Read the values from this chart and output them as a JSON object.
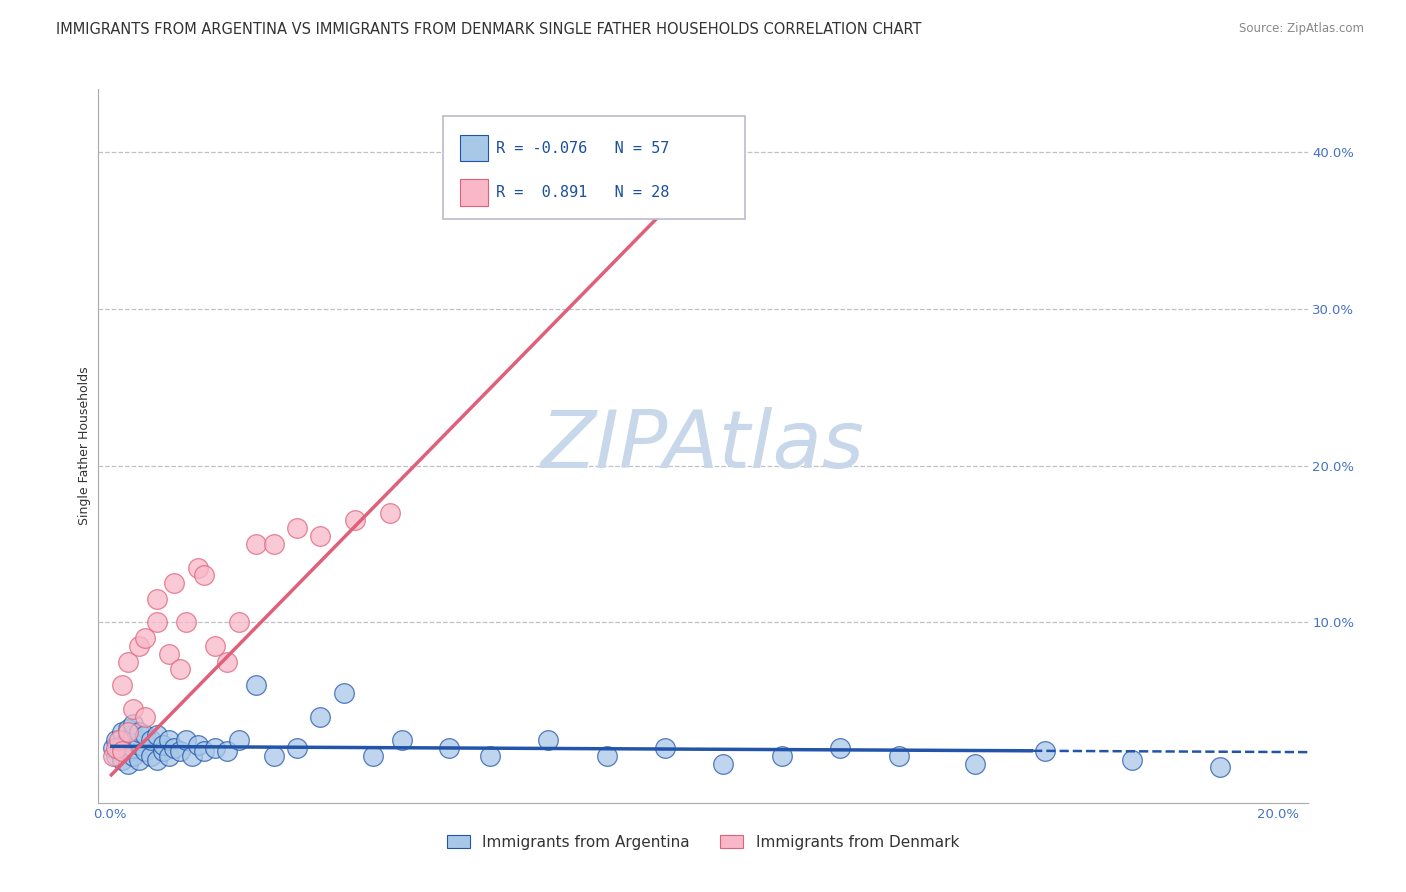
{
  "title": "IMMIGRANTS FROM ARGENTINA VS IMMIGRANTS FROM DENMARK SINGLE FATHER HOUSEHOLDS CORRELATION CHART",
  "source": "Source: ZipAtlas.com",
  "ylabel": "Single Father Households",
  "xlim": [
    -0.002,
    0.205
  ],
  "ylim": [
    -0.015,
    0.44
  ],
  "xticks": [
    0.0,
    0.2
  ],
  "yticks": [
    0.1,
    0.2,
    0.3,
    0.4
  ],
  "argentina_R": -0.076,
  "argentina_N": 57,
  "denmark_R": 0.891,
  "denmark_N": 28,
  "argentina_color": "#a8c8e8",
  "denmark_color": "#f8b8c8",
  "argentina_line_color": "#2255aa",
  "denmark_line_color": "#e0607a",
  "watermark": "ZIPAtlas",
  "watermark_color": "#c8d8ea",
  "argentina_x": [
    0.0005,
    0.001,
    0.001,
    0.0015,
    0.002,
    0.002,
    0.002,
    0.003,
    0.003,
    0.003,
    0.003,
    0.004,
    0.004,
    0.004,
    0.004,
    0.005,
    0.005,
    0.005,
    0.006,
    0.006,
    0.007,
    0.007,
    0.008,
    0.008,
    0.009,
    0.009,
    0.01,
    0.01,
    0.011,
    0.012,
    0.013,
    0.014,
    0.015,
    0.016,
    0.018,
    0.02,
    0.022,
    0.025,
    0.028,
    0.032,
    0.036,
    0.04,
    0.045,
    0.05,
    0.058,
    0.065,
    0.075,
    0.085,
    0.095,
    0.105,
    0.115,
    0.125,
    0.135,
    0.148,
    0.16,
    0.175,
    0.19
  ],
  "argentina_y": [
    0.02,
    0.015,
    0.025,
    0.018,
    0.012,
    0.022,
    0.03,
    0.01,
    0.018,
    0.025,
    0.032,
    0.015,
    0.02,
    0.028,
    0.035,
    0.012,
    0.022,
    0.03,
    0.018,
    0.028,
    0.015,
    0.025,
    0.012,
    0.028,
    0.018,
    0.022,
    0.015,
    0.025,
    0.02,
    0.018,
    0.025,
    0.015,
    0.022,
    0.018,
    0.02,
    0.018,
    0.025,
    0.06,
    0.015,
    0.02,
    0.04,
    0.055,
    0.015,
    0.025,
    0.02,
    0.015,
    0.025,
    0.015,
    0.02,
    0.01,
    0.015,
    0.02,
    0.015,
    0.01,
    0.018,
    0.012,
    0.008
  ],
  "denmark_x": [
    0.0005,
    0.001,
    0.0015,
    0.002,
    0.002,
    0.003,
    0.003,
    0.004,
    0.005,
    0.006,
    0.006,
    0.008,
    0.008,
    0.01,
    0.011,
    0.012,
    0.013,
    0.015,
    0.016,
    0.018,
    0.02,
    0.022,
    0.025,
    0.028,
    0.032,
    0.036,
    0.042,
    0.048
  ],
  "denmark_y": [
    0.015,
    0.02,
    0.025,
    0.018,
    0.06,
    0.03,
    0.075,
    0.045,
    0.085,
    0.04,
    0.09,
    0.1,
    0.115,
    0.08,
    0.125,
    0.07,
    0.1,
    0.135,
    0.13,
    0.085,
    0.075,
    0.1,
    0.15,
    0.15,
    0.16,
    0.155,
    0.165,
    0.17
  ],
  "arg_slope": -0.018,
  "arg_intercept": 0.021,
  "arg_line_x_solid_end": 0.158,
  "arg_line_x_dashed_end": 0.205,
  "den_slope": 3.8,
  "den_intercept": 0.002,
  "den_line_x_end": 0.105,
  "background_color": "#ffffff",
  "grid_color": "#c0c0c8",
  "title_fontsize": 10.5,
  "axis_label_fontsize": 9,
  "tick_fontsize": 9.5,
  "legend_fontsize": 11
}
